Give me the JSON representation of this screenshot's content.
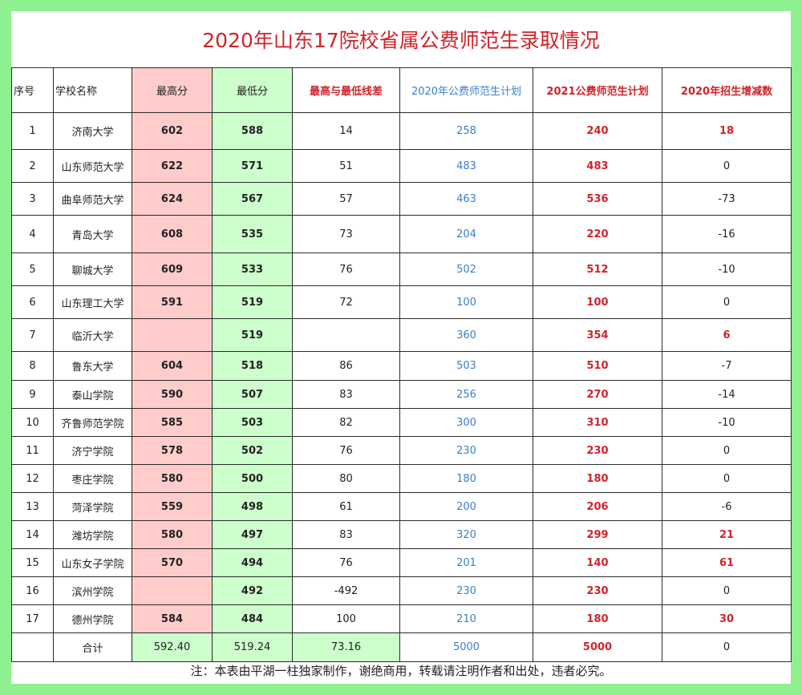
{
  "title": "2020年山东17院校省属公费师范生录取情况",
  "headers": {
    "idx": "序号",
    "name": "学校名称",
    "max": "最高分",
    "min": "最低分",
    "diff": "最高与最低线差",
    "plan2020": "2020年公费师范生计划",
    "plan2021": "2021公费师范生计划",
    "change": "2020年招生增减数"
  },
  "rows": [
    {
      "idx": "1",
      "name": "济南大学",
      "max": "602",
      "min": "588",
      "diff": "14",
      "plan2020": "258",
      "plan2021": "240",
      "change": "18"
    },
    {
      "idx": "2",
      "name": "山东师范大学",
      "max": "622",
      "min": "571",
      "diff": "51",
      "plan2020": "483",
      "plan2021": "483",
      "change": "0"
    },
    {
      "idx": "3",
      "name": "曲阜师范大学",
      "max": "624",
      "min": "567",
      "diff": "57",
      "plan2020": "463",
      "plan2021": "536",
      "change": "-73"
    },
    {
      "idx": "4",
      "name": "青岛大学",
      "max": "608",
      "min": "535",
      "diff": "73",
      "plan2020": "204",
      "plan2021": "220",
      "change": "-16"
    },
    {
      "idx": "5",
      "name": "聊城大学",
      "max": "609",
      "min": "533",
      "diff": "76",
      "plan2020": "502",
      "plan2021": "512",
      "change": "-10"
    },
    {
      "idx": "6",
      "name": "山东理工大学",
      "max": "591",
      "min": "519",
      "diff": "72",
      "plan2020": "100",
      "plan2021": "100",
      "change": "0"
    },
    {
      "idx": "7",
      "name": "临沂大学",
      "max": "",
      "min": "519",
      "diff": "",
      "plan2020": "360",
      "plan2021": "354",
      "change": "6"
    },
    {
      "idx": "8",
      "name": "鲁东大学",
      "max": "604",
      "min": "518",
      "diff": "86",
      "plan2020": "503",
      "plan2021": "510",
      "change": "-7"
    },
    {
      "idx": "9",
      "name": "泰山学院",
      "max": "590",
      "min": "507",
      "diff": "83",
      "plan2020": "256",
      "plan2021": "270",
      "change": "-14"
    },
    {
      "idx": "10",
      "name": "齐鲁师范学院",
      "max": "585",
      "min": "503",
      "diff": "82",
      "plan2020": "300",
      "plan2021": "310",
      "change": "-10"
    },
    {
      "idx": "11",
      "name": "济宁学院",
      "max": "578",
      "min": "502",
      "diff": "76",
      "plan2020": "230",
      "plan2021": "230",
      "change": "0"
    },
    {
      "idx": "12",
      "name": "枣庄学院",
      "max": "580",
      "min": "500",
      "diff": "80",
      "plan2020": "180",
      "plan2021": "180",
      "change": "0"
    },
    {
      "idx": "13",
      "name": "菏泽学院",
      "max": "559",
      "min": "498",
      "diff": "61",
      "plan2020": "200",
      "plan2021": "206",
      "change": "-6"
    },
    {
      "idx": "14",
      "name": "潍坊学院",
      "max": "580",
      "min": "497",
      "diff": "83",
      "plan2020": "320",
      "plan2021": "299",
      "change": "21"
    },
    {
      "idx": "15",
      "name": "山东女子学院",
      "max": "570",
      "min": "494",
      "diff": "76",
      "plan2020": "201",
      "plan2021": "140",
      "change": "61"
    },
    {
      "idx": "16",
      "name": "滨州学院",
      "max": "",
      "min": "492",
      "diff": "-492",
      "plan2020": "230",
      "plan2021": "230",
      "change": "0"
    },
    {
      "idx": "17",
      "name": "德州学院",
      "max": "584",
      "min": "484",
      "diff": "100",
      "plan2020": "210",
      "plan2021": "180",
      "change": "30"
    }
  ],
  "total": {
    "label": "合计",
    "max": "592.40",
    "min": "519.24",
    "diff": "73.16",
    "plan2020": "5000",
    "plan2021": "5000",
    "change": "0"
  },
  "note": "注：本表由平湖一柱独家制作，谢绝商用，转载请注明作者和出处，违者必究。",
  "colors": {
    "frame": "#8ef08e",
    "title_red": "#d0232a",
    "max_fill": "#ffcccc",
    "min_fill": "#ccffcc",
    "plan2020_blue": "#3a7fc8"
  }
}
